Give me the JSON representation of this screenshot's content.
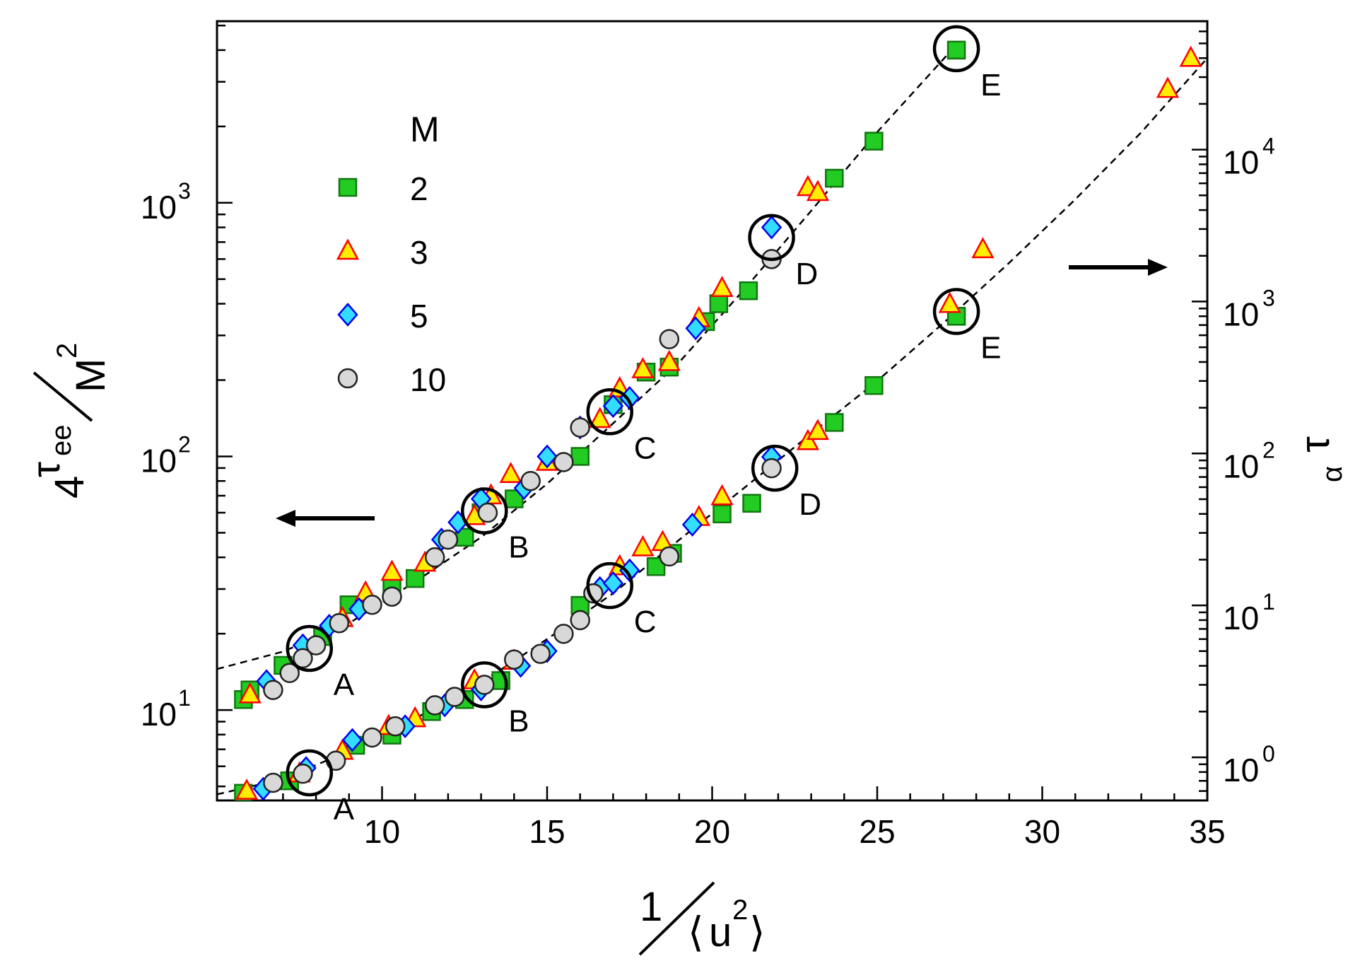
{
  "chart_data": {
    "type": "scatter",
    "xlabel": {
      "numerator": "1",
      "denominator": "⟨u²⟩",
      "u": "u",
      "two": "2"
    },
    "ylabel_left": {
      "coef": "4",
      "tau": "τ",
      "sub": "ee",
      "denom": "M",
      "pow": "2"
    },
    "ylabel_right": {
      "tau": "τ",
      "sub": "α"
    },
    "xlim": [
      5,
      35
    ],
    "ylim_left": [
      4.4,
      5200
    ],
    "ylim_right": [
      0.52,
      70000
    ],
    "x_ticks": [
      10,
      15,
      20,
      25,
      30,
      35
    ],
    "x_tick_labels": [
      "10",
      "15",
      "20",
      "25",
      "30",
      "35"
    ],
    "y_left_ticks": [
      {
        "value": 10,
        "base": "10",
        "exp": "1"
      },
      {
        "value": 100,
        "base": "10",
        "exp": "2"
      },
      {
        "value": 1000,
        "base": "10",
        "exp": "3"
      }
    ],
    "y_right_ticks": [
      {
        "value": 1,
        "base": "10",
        "exp": "0"
      },
      {
        "value": 10,
        "base": "10",
        "exp": "1"
      },
      {
        "value": 100,
        "base": "10",
        "exp": "2"
      },
      {
        "value": 1000,
        "base": "10",
        "exp": "3"
      },
      {
        "value": 10000,
        "base": "10",
        "exp": "4"
      }
    ],
    "legend": {
      "title": "M",
      "position": "top-left",
      "entries": [
        {
          "label": "2",
          "marker": "square",
          "fill": "#22cc22",
          "stroke": "#117711"
        },
        {
          "label": "3",
          "marker": "triangle",
          "fill": "#ffee00",
          "stroke": "#ff0000"
        },
        {
          "label": "5",
          "marker": "diamond",
          "fill": "#33ddff",
          "stroke": "#0000ee"
        },
        {
          "label": "10",
          "marker": "circle",
          "fill": "#d8d8d8",
          "stroke": "#222222"
        }
      ]
    },
    "series_left": [
      {
        "name": "2",
        "axis": "left",
        "x": [
          5.8,
          6.0,
          7.0,
          8.2,
          9.0,
          10.3,
          11.0,
          12.5,
          13.0,
          14.0,
          16.0,
          17.0,
          18.0,
          18.7,
          19.8,
          20.2,
          21.1,
          23.7,
          24.9,
          27.4
        ],
        "y": [
          11,
          12,
          15,
          19.5,
          26,
          31,
          33,
          48,
          60,
          68,
          100,
          160,
          215,
          225,
          340,
          400,
          450,
          1250,
          1750,
          4000
        ]
      },
      {
        "name": "3",
        "axis": "left",
        "x": [
          6.0,
          8.8,
          9.5,
          10.3,
          11.3,
          12.8,
          13.3,
          13.9,
          15.0,
          16.6,
          17.2,
          17.9,
          18.7,
          19.6,
          20.3,
          22.9,
          23.2
        ],
        "y": [
          11.5,
          23,
          29,
          35,
          38,
          58,
          70,
          85,
          95,
          140,
          185,
          220,
          235,
          350,
          460,
          1150,
          1100
        ]
      },
      {
        "name": "5",
        "axis": "left",
        "x": [
          6.5,
          7.6,
          8.4,
          9.3,
          11.8,
          12.3,
          13.0,
          14.3,
          15.0,
          16.0,
          17.0,
          17.5,
          19.5,
          21.8
        ],
        "y": [
          13,
          18,
          21.5,
          25,
          47,
          55,
          68,
          75,
          100,
          130,
          158,
          170,
          320,
          800
        ]
      },
      {
        "name": "10",
        "axis": "left",
        "x": [
          6.7,
          7.2,
          7.6,
          8.0,
          8.7,
          9.7,
          10.3,
          11.6,
          12.0,
          13.2,
          14.5,
          15.5,
          16.0,
          18.7,
          21.8
        ],
        "y": [
          12,
          14,
          16,
          18,
          22,
          26,
          28,
          40,
          47,
          60,
          80,
          95,
          130,
          290,
          600
        ]
      }
    ],
    "series_right": [
      {
        "name": "2",
        "axis": "right",
        "x": [
          5.8,
          7.2,
          9.2,
          10.3,
          11.5,
          12.5,
          13.6,
          16.0,
          18.3,
          18.8,
          20.3,
          21.2,
          23.7,
          24.9,
          27.4
        ],
        "y": [
          0.58,
          0.7,
          1.2,
          1.4,
          2.0,
          2.4,
          3.2,
          10,
          18,
          22,
          40,
          47,
          160,
          280,
          800
        ]
      },
      {
        "name": "3",
        "axis": "right",
        "x": [
          5.9,
          7.5,
          8.8,
          10.2,
          11.0,
          12.8,
          14.0,
          17.2,
          17.9,
          18.5,
          19.6,
          20.3,
          22.9,
          23.2,
          27.2,
          28.2,
          33.8,
          34.5
        ],
        "y": [
          0.6,
          0.78,
          1.1,
          1.6,
          1.8,
          3.2,
          4.3,
          18,
          24,
          26,
          38,
          52,
          120,
          140,
          960,
          2200,
          25000,
          40000
        ]
      },
      {
        "name": "5",
        "axis": "right",
        "x": [
          6.4,
          7.7,
          9.1,
          10.7,
          11.9,
          13.0,
          14.2,
          15.0,
          16.6,
          17.0,
          17.5,
          19.4,
          21.8
        ],
        "y": [
          0.62,
          0.85,
          1.3,
          1.6,
          2.2,
          2.8,
          4.0,
          5.0,
          13,
          14,
          17,
          34,
          95
        ]
      },
      {
        "name": "10",
        "axis": "right",
        "x": [
          6.7,
          7.6,
          8.6,
          9.7,
          10.4,
          11.6,
          12.2,
          13.1,
          14.0,
          14.8,
          15.5,
          16.0,
          16.4,
          18.7,
          21.8
        ],
        "y": [
          0.68,
          0.78,
          0.95,
          1.35,
          1.6,
          2.2,
          2.5,
          3.0,
          4.4,
          4.8,
          6.5,
          8.0,
          12,
          21,
          80
        ]
      }
    ],
    "fit_curves": [
      {
        "axis": "left",
        "style": "dashed",
        "x": [
          5,
          7,
          9,
          11,
          13,
          15,
          17,
          19,
          21,
          23,
          25,
          27.4
        ],
        "y": [
          14.5,
          17,
          22,
          32,
          48,
          78,
          135,
          235,
          460,
          930,
          1900,
          4200
        ]
      },
      {
        "axis": "right",
        "style": "dashed",
        "x": [
          5,
          7,
          9,
          11,
          13,
          15,
          17,
          19,
          21,
          23,
          25,
          27,
          29,
          31,
          33,
          35
        ],
        "y": [
          0.57,
          0.72,
          1.1,
          1.8,
          3.1,
          6.0,
          12,
          27,
          60,
          135,
          300,
          720,
          1800,
          4700,
          13000,
          40000
        ]
      }
    ],
    "highlighted_points": [
      {
        "label": "A",
        "axis": "left",
        "x": 7.8,
        "y": 17.5
      },
      {
        "label": "B",
        "axis": "left",
        "x": 13.1,
        "y": 61
      },
      {
        "label": "C",
        "axis": "left",
        "x": 16.9,
        "y": 150
      },
      {
        "label": "D",
        "axis": "left",
        "x": 21.8,
        "y": 730
      },
      {
        "label": "E",
        "axis": "left",
        "x": 27.4,
        "y": 4050
      },
      {
        "label": "A",
        "axis": "right",
        "x": 7.8,
        "y": 0.79
      },
      {
        "label": "B",
        "axis": "right",
        "x": 13.1,
        "y": 3.0
      },
      {
        "label": "C",
        "axis": "right",
        "x": 16.9,
        "y": 13.5
      },
      {
        "label": "D",
        "axis": "right",
        "x": 21.9,
        "y": 80
      },
      {
        "label": "E",
        "axis": "right",
        "x": 27.4,
        "y": 860
      }
    ],
    "arrows": [
      {
        "direction": "left",
        "meaning": "upper data uses left axis"
      },
      {
        "direction": "right",
        "meaning": "lower data uses right axis"
      }
    ]
  }
}
